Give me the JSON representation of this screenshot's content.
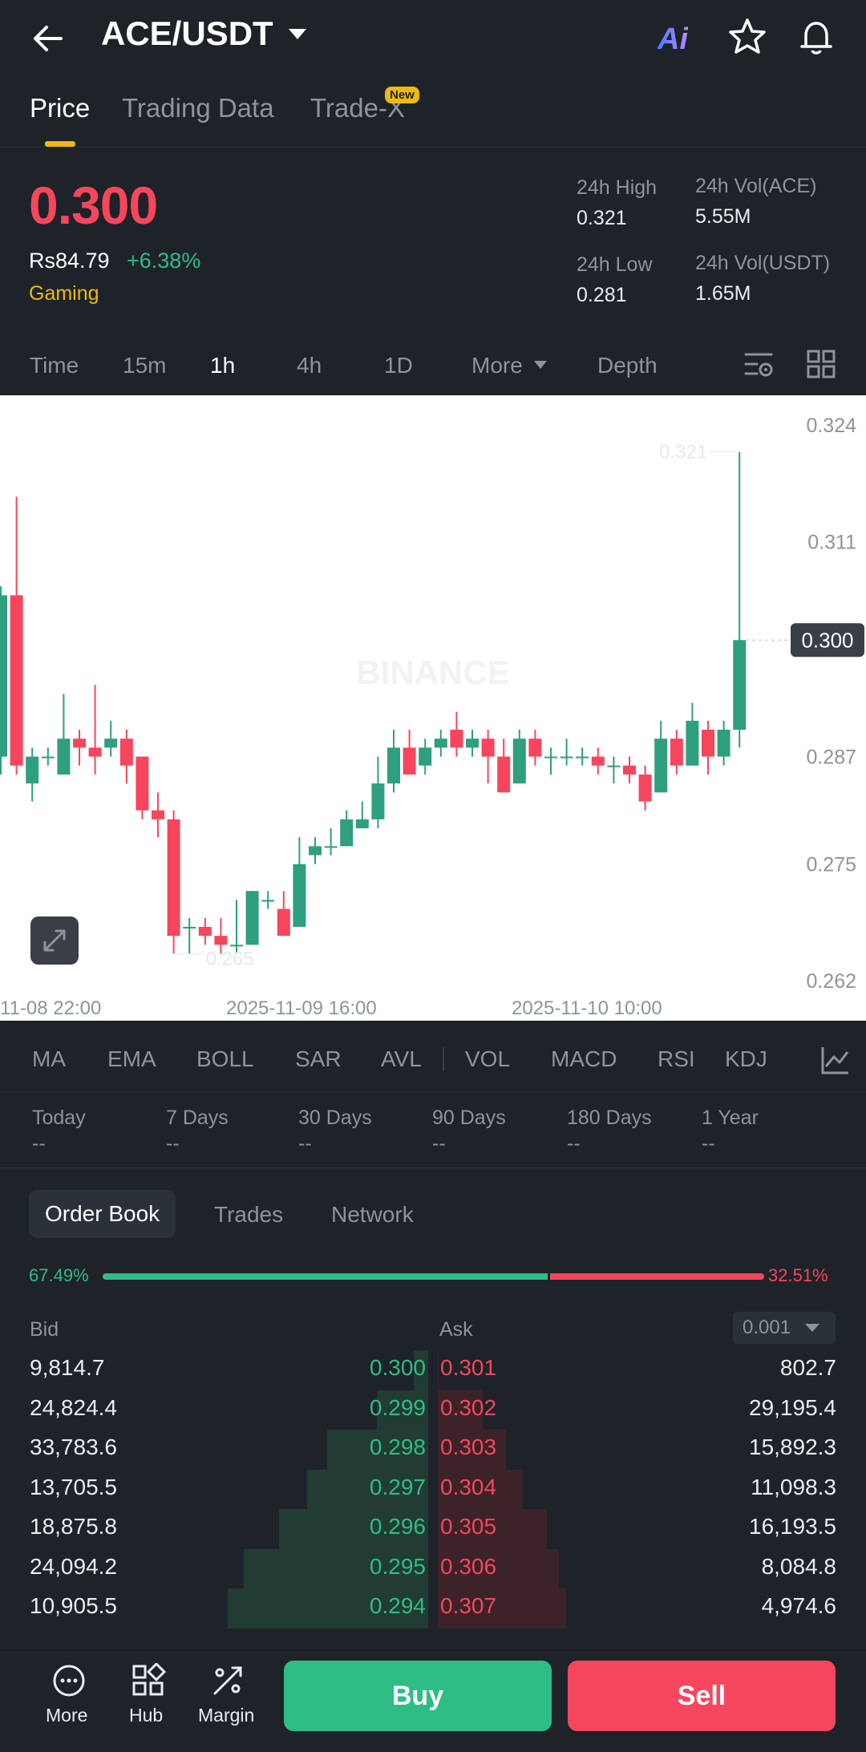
{
  "header": {
    "pair": "ACE/USDT",
    "ai_label": "Ai",
    "icons": [
      "back-arrow-icon",
      "ai-icon",
      "star-icon",
      "bell-icon"
    ]
  },
  "tabs": [
    {
      "label": "Price",
      "active": true
    },
    {
      "label": "Trading Data",
      "active": false
    },
    {
      "label": "Trade-X",
      "active": false,
      "badge": "New"
    }
  ],
  "price": {
    "last": "0.300",
    "fiat": "Rs84.79",
    "change": "+6.38%",
    "tag": "Gaming",
    "stats": {
      "high_label": "24h High",
      "high": "0.321",
      "low_label": "24h Low",
      "low": "0.281",
      "vol_base_label": "24h Vol(ACE)",
      "vol_base": "5.55M",
      "vol_quote_label": "24h Vol(USDT)",
      "vol_quote": "1.65M"
    }
  },
  "intervals": [
    {
      "label": "Time",
      "active": false
    },
    {
      "label": "15m",
      "active": false
    },
    {
      "label": "1h",
      "active": true
    },
    {
      "label": "4h",
      "active": false
    },
    {
      "label": "1D",
      "active": false
    },
    {
      "label": "More",
      "active": false
    },
    {
      "label": "Depth",
      "active": false
    }
  ],
  "chart_data": {
    "type": "candlestick",
    "watermark": "BINANCE",
    "y_ticks": [
      "0.324",
      "0.311",
      "0.300",
      "0.287",
      "0.275",
      "0.262"
    ],
    "ylim": [
      0.2605,
      0.3255
    ],
    "current_price": "0.300",
    "high_marker": "0.321",
    "low_marker": "0.265",
    "x_ticks": [
      "11-08 22:00",
      "2025-11-09 16:00",
      "2025-11-10 10:00"
    ],
    "candles": [
      {
        "o": 0.287,
        "c": 0.305,
        "h": 0.306,
        "l": 0.285
      },
      {
        "o": 0.305,
        "c": 0.286,
        "h": 0.316,
        "l": 0.285
      },
      {
        "o": 0.284,
        "c": 0.287,
        "h": 0.288,
        "l": 0.282
      },
      {
        "o": 0.287,
        "c": 0.287,
        "h": 0.288,
        "l": 0.286
      },
      {
        "o": 0.285,
        "c": 0.289,
        "h": 0.294,
        "l": 0.285
      },
      {
        "o": 0.289,
        "c": 0.288,
        "h": 0.29,
        "l": 0.286
      },
      {
        "o": 0.288,
        "c": 0.287,
        "h": 0.295,
        "l": 0.285
      },
      {
        "o": 0.288,
        "c": 0.289,
        "h": 0.291,
        "l": 0.287
      },
      {
        "o": 0.289,
        "c": 0.286,
        "h": 0.29,
        "l": 0.284
      },
      {
        "o": 0.287,
        "c": 0.281,
        "h": 0.287,
        "l": 0.28
      },
      {
        "o": 0.281,
        "c": 0.28,
        "h": 0.283,
        "l": 0.278
      },
      {
        "o": 0.28,
        "c": 0.267,
        "h": 0.281,
        "l": 0.265
      },
      {
        "o": 0.268,
        "c": 0.268,
        "h": 0.269,
        "l": 0.265
      },
      {
        "o": 0.268,
        "c": 0.267,
        "h": 0.269,
        "l": 0.266
      },
      {
        "o": 0.267,
        "c": 0.266,
        "h": 0.269,
        "l": 0.265
      },
      {
        "o": 0.266,
        "c": 0.266,
        "h": 0.271,
        "l": 0.265
      },
      {
        "o": 0.266,
        "c": 0.272,
        "h": 0.272,
        "l": 0.266
      },
      {
        "o": 0.271,
        "c": 0.271,
        "h": 0.272,
        "l": 0.27
      },
      {
        "o": 0.27,
        "c": 0.267,
        "h": 0.272,
        "l": 0.267
      },
      {
        "o": 0.268,
        "c": 0.275,
        "h": 0.278,
        "l": 0.268
      },
      {
        "o": 0.276,
        "c": 0.277,
        "h": 0.278,
        "l": 0.275
      },
      {
        "o": 0.277,
        "c": 0.277,
        "h": 0.279,
        "l": 0.276
      },
      {
        "o": 0.277,
        "c": 0.28,
        "h": 0.281,
        "l": 0.277
      },
      {
        "o": 0.279,
        "c": 0.28,
        "h": 0.282,
        "l": 0.279
      },
      {
        "o": 0.28,
        "c": 0.284,
        "h": 0.287,
        "l": 0.279
      },
      {
        "o": 0.284,
        "c": 0.288,
        "h": 0.29,
        "l": 0.283
      },
      {
        "o": 0.288,
        "c": 0.285,
        "h": 0.29,
        "l": 0.285
      },
      {
        "o": 0.286,
        "c": 0.288,
        "h": 0.289,
        "l": 0.285
      },
      {
        "o": 0.288,
        "c": 0.289,
        "h": 0.29,
        "l": 0.287
      },
      {
        "o": 0.29,
        "c": 0.288,
        "h": 0.292,
        "l": 0.287
      },
      {
        "o": 0.288,
        "c": 0.289,
        "h": 0.29,
        "l": 0.287
      },
      {
        "o": 0.289,
        "c": 0.287,
        "h": 0.29,
        "l": 0.284
      },
      {
        "o": 0.287,
        "c": 0.283,
        "h": 0.289,
        "l": 0.283
      },
      {
        "o": 0.284,
        "c": 0.289,
        "h": 0.29,
        "l": 0.284
      },
      {
        "o": 0.289,
        "c": 0.287,
        "h": 0.29,
        "l": 0.286
      },
      {
        "o": 0.287,
        "c": 0.287,
        "h": 0.288,
        "l": 0.285
      },
      {
        "o": 0.287,
        "c": 0.287,
        "h": 0.289,
        "l": 0.286
      },
      {
        "o": 0.287,
        "c": 0.287,
        "h": 0.288,
        "l": 0.286
      },
      {
        "o": 0.287,
        "c": 0.286,
        "h": 0.288,
        "l": 0.285
      },
      {
        "o": 0.286,
        "c": 0.286,
        "h": 0.287,
        "l": 0.284
      },
      {
        "o": 0.286,
        "c": 0.285,
        "h": 0.287,
        "l": 0.284
      },
      {
        "o": 0.285,
        "c": 0.282,
        "h": 0.286,
        "l": 0.281
      },
      {
        "o": 0.283,
        "c": 0.289,
        "h": 0.291,
        "l": 0.283
      },
      {
        "o": 0.289,
        "c": 0.286,
        "h": 0.29,
        "l": 0.285
      },
      {
        "o": 0.286,
        "c": 0.291,
        "h": 0.293,
        "l": 0.286
      },
      {
        "o": 0.29,
        "c": 0.287,
        "h": 0.291,
        "l": 0.285
      },
      {
        "o": 0.287,
        "c": 0.29,
        "h": 0.291,
        "l": 0.286
      },
      {
        "o": 0.29,
        "c": 0.3,
        "h": 0.321,
        "l": 0.288
      }
    ]
  },
  "indicators": [
    "MA",
    "EMA",
    "BOLL",
    "SAR",
    "AVL",
    "VOL",
    "MACD",
    "RSI",
    "KDJ"
  ],
  "performance": [
    {
      "label": "Today",
      "value": "--"
    },
    {
      "label": "7 Days",
      "value": "--"
    },
    {
      "label": "30 Days",
      "value": "--"
    },
    {
      "label": "90 Days",
      "value": "--"
    },
    {
      "label": "180 Days",
      "value": "--"
    },
    {
      "label": "1 Year",
      "value": "--"
    }
  ],
  "orderbook": {
    "tabs": [
      "Order Book",
      "Trades",
      "Network"
    ],
    "bid_ratio": "67.49%",
    "ask_ratio": "32.51%",
    "bid_ratio_value": 67.49,
    "bid_label": "Bid",
    "ask_label": "Ask",
    "step": "0.001",
    "bids": [
      {
        "qty": "9,814.7",
        "price": "0.300"
      },
      {
        "qty": "24,824.4",
        "price": "0.299"
      },
      {
        "qty": "33,783.6",
        "price": "0.298"
      },
      {
        "qty": "13,705.5",
        "price": "0.297"
      },
      {
        "qty": "18,875.8",
        "price": "0.296"
      },
      {
        "qty": "24,094.2",
        "price": "0.295"
      },
      {
        "qty": "10,905.5",
        "price": "0.294"
      }
    ],
    "asks": [
      {
        "price": "0.301",
        "qty": "802.7"
      },
      {
        "price": "0.302",
        "qty": "29,195.4"
      },
      {
        "price": "0.303",
        "qty": "15,892.3"
      },
      {
        "price": "0.304",
        "qty": "11,098.3"
      },
      {
        "price": "0.305",
        "qty": "16,193.5"
      },
      {
        "price": "0.306",
        "qty": "8,084.8"
      },
      {
        "price": "0.307",
        "qty": "4,974.6"
      }
    ]
  },
  "bottom": {
    "items": [
      {
        "label": "More",
        "icon": "more-dots-icon"
      },
      {
        "label": "Hub",
        "icon": "hub-grid-icon"
      },
      {
        "label": "Margin",
        "icon": "margin-icon"
      }
    ],
    "buy": "Buy",
    "sell": "Sell"
  }
}
